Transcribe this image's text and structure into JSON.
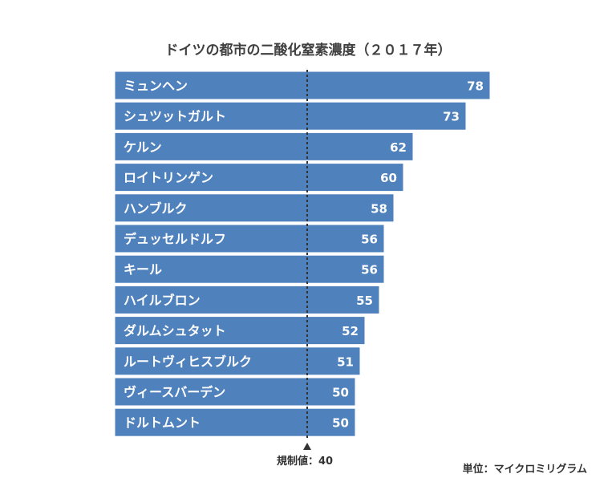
{
  "chart_data": {
    "type": "bar",
    "orientation": "horizontal",
    "title": "ドイツの都市の二酸化窒素濃度（２０１７年）",
    "categories": [
      "ミュンヘン",
      "シュツットガルト",
      "ケルン",
      "ロイトリンゲン",
      "ハンブルク",
      "デュッセルドルフ",
      "キール",
      "ハイルブロン",
      "ダルムシュタット",
      "ルートヴィヒスブルク",
      "ヴィースバーデン",
      "ドルトムント"
    ],
    "values": [
      78,
      73,
      62,
      60,
      58,
      56,
      56,
      55,
      52,
      51,
      50,
      50
    ],
    "unit_label": "単位：マイクロミリグラム",
    "threshold": {
      "value": 40,
      "label": "規制値：40"
    },
    "xlim": [
      0,
      80
    ],
    "grid": false,
    "legend": "none",
    "colors": {
      "bar": "#4f81bd",
      "bar_border": "#ffffff",
      "text": "#ffffff",
      "threshold_line": "#333333",
      "title": "#404040"
    }
  }
}
